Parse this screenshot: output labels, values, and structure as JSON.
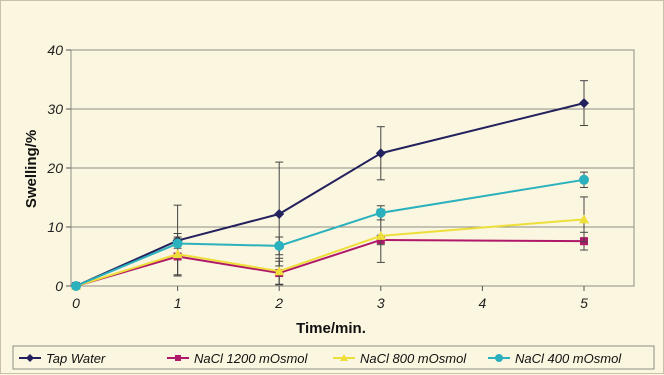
{
  "chart_data": {
    "type": "line",
    "xlabel": "Time/min.",
    "ylabel": "Swelling/%",
    "xlim": [
      0,
      5.5
    ],
    "ylim": [
      0,
      40
    ],
    "x_ticks": [
      "0",
      "1",
      "2",
      "3",
      "4",
      "5"
    ],
    "y_ticks": [
      "0",
      "10",
      "20",
      "30",
      "40"
    ],
    "grid": "horizontal",
    "legend_position": "bottom",
    "series": [
      {
        "name": "Tap Water",
        "color": "#23215e",
        "marker": "diamond",
        "x": [
          0,
          1,
          2,
          3,
          5
        ],
        "y": [
          0,
          7.7,
          12.2,
          22.5,
          31.0
        ],
        "error": [
          0,
          6.0,
          8.8,
          4.5,
          3.8
        ]
      },
      {
        "name": "NaCl 1200 mOsmol",
        "color": "#b0196a",
        "marker": "square",
        "x": [
          0,
          1,
          2,
          3,
          5
        ],
        "y": [
          0,
          5.0,
          2.2,
          7.8,
          7.6
        ],
        "error": [
          0,
          3.3,
          2.0,
          0.8,
          1.5
        ]
      },
      {
        "name": "NaCl 800 mOsmol",
        "color": "#eede3a",
        "marker": "triangle",
        "x": [
          0,
          1,
          2,
          3,
          5
        ],
        "y": [
          0,
          5.4,
          2.5,
          8.5,
          11.3
        ],
        "error": [
          0,
          3.5,
          2.2,
          4.5,
          3.8
        ]
      },
      {
        "name": "NaCl 400 mOsmol",
        "color": "#2bb1bd",
        "marker": "circle",
        "x": [
          0,
          1,
          2,
          3,
          5
        ],
        "y": [
          0,
          7.2,
          6.8,
          12.4,
          18.0
        ],
        "error": [
          0,
          0.8,
          1.5,
          1.2,
          1.3
        ]
      }
    ]
  }
}
